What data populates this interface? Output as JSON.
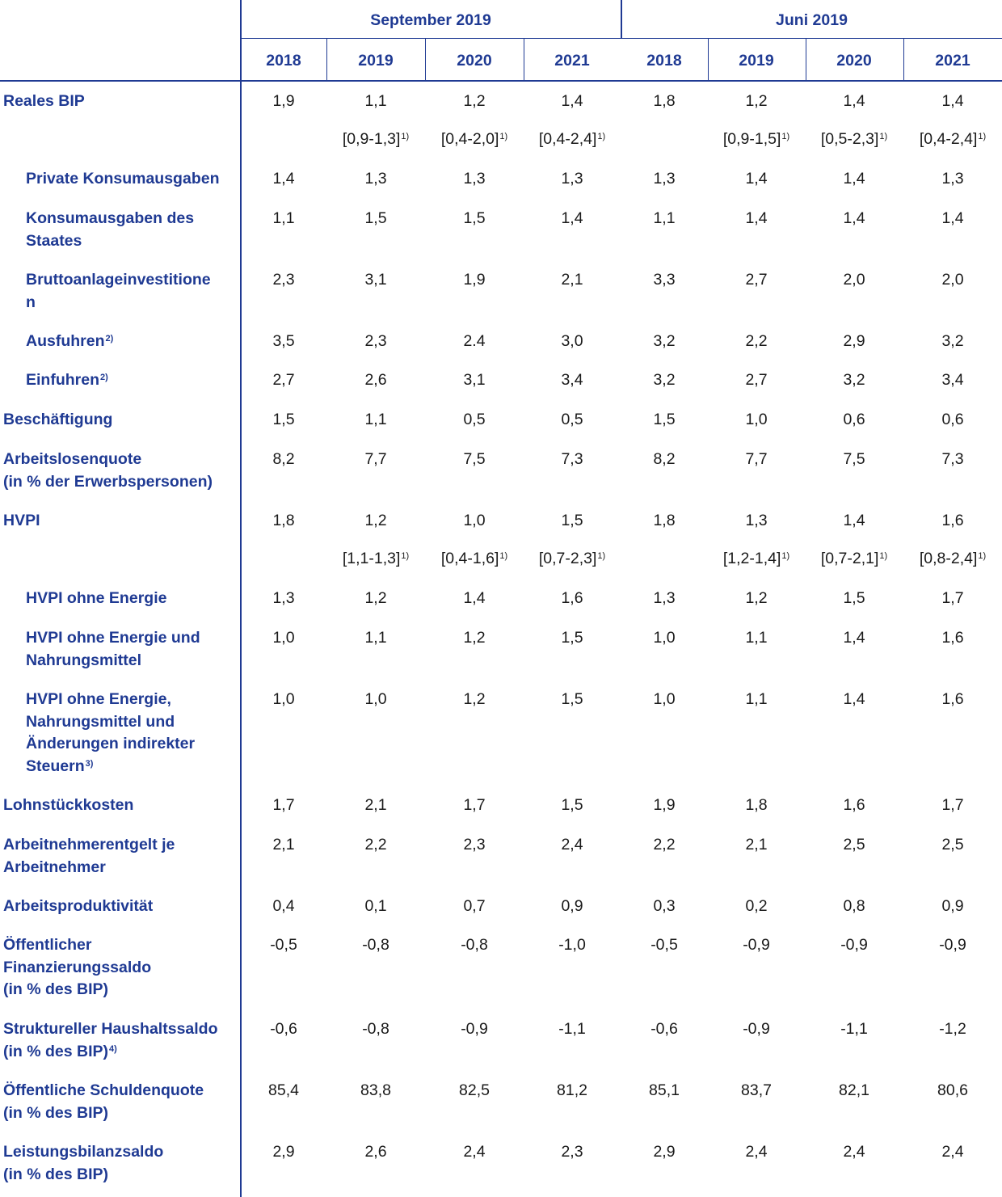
{
  "header": {
    "group1": "September 2019",
    "group2": "Juni 2019",
    "years": [
      "2018",
      "2019",
      "2020",
      "2021",
      "2018",
      "2019",
      "2020",
      "2021"
    ]
  },
  "rows": [
    {
      "label": [
        "Reales BIP"
      ],
      "indent": false,
      "values": [
        "1,9",
        "1,1",
        "1,2",
        "1,4",
        "1,8",
        "1,2",
        "1,4",
        "1,4"
      ]
    },
    {
      "range": true,
      "values": [
        "",
        "[0,9-1,3]",
        "[0,4-2,0]",
        "[0,4-2,4]",
        "",
        "[0,9-1,5]",
        "[0,5-2,3]",
        "[0,4-2,4]"
      ],
      "sup": "1)"
    },
    {
      "label": [
        "Private Konsumausgaben"
      ],
      "indent": true,
      "values": [
        "1,4",
        "1,3",
        "1,3",
        "1,3",
        "1,3",
        "1,4",
        "1,4",
        "1,3"
      ]
    },
    {
      "label": [
        "Konsumausgaben des",
        "Staates"
      ],
      "indent": true,
      "values": [
        "1,1",
        "1,5",
        "1,5",
        "1,4",
        "1,1",
        "1,4",
        "1,4",
        "1,4"
      ]
    },
    {
      "label": [
        "Bruttoanlageinvestitione",
        "n"
      ],
      "indent": true,
      "values": [
        "2,3",
        "3,1",
        "1,9",
        "2,1",
        "3,3",
        "2,7",
        "2,0",
        "2,0"
      ]
    },
    {
      "label": [
        "Ausfuhren"
      ],
      "labelSup": "2)",
      "indent": true,
      "values": [
        "3,5",
        "2,3",
        "2.4",
        "3,0",
        "3,2",
        "2,2",
        "2,9",
        "3,2"
      ]
    },
    {
      "label": [
        "Einfuhren"
      ],
      "labelSup": "2)",
      "indent": true,
      "values": [
        "2,7",
        "2,6",
        "3,1",
        "3,4",
        "3,2",
        "2,7",
        "3,2",
        "3,4"
      ]
    },
    {
      "label": [
        "Beschäftigung"
      ],
      "indent": false,
      "values": [
        "1,5",
        "1,1",
        "0,5",
        "0,5",
        "1,5",
        "1,0",
        "0,6",
        "0,6"
      ]
    },
    {
      "label": [
        "Arbeitslosenquote",
        "(in % der Erwerbspersonen)"
      ],
      "indent": false,
      "values": [
        "8,2",
        "7,7",
        "7,5",
        "7,3",
        "8,2",
        "7,7",
        "7,5",
        "7,3"
      ]
    },
    {
      "label": [
        "HVPI"
      ],
      "indent": false,
      "values": [
        "1,8",
        "1,2",
        "1,0",
        "1,5",
        "1,8",
        "1,3",
        "1,4",
        "1,6"
      ]
    },
    {
      "range": true,
      "values": [
        "",
        "[1,1-1,3]",
        "[0,4-1,6]",
        "[0,7-2,3]",
        "",
        "[1,2-1,4]",
        "[0,7-2,1]",
        "[0,8-2,4]"
      ],
      "sup": "1)"
    },
    {
      "label": [
        "HVPI ohne Energie"
      ],
      "indent": true,
      "values": [
        "1,3",
        "1,2",
        "1,4",
        "1,6",
        "1,3",
        "1,2",
        "1,5",
        "1,7"
      ]
    },
    {
      "label": [
        "HVPI ohne Energie und",
        "Nahrungsmittel"
      ],
      "indent": true,
      "values": [
        "1,0",
        "1,1",
        "1,2",
        "1,5",
        "1,0",
        "1,1",
        "1,4",
        "1,6"
      ]
    },
    {
      "label": [
        "HVPI ohne Energie,",
        "Nahrungsmittel und",
        "Änderungen indirekter",
        "Steuern"
      ],
      "labelSup": "3)",
      "indent": true,
      "values": [
        "1,0",
        "1,0",
        "1,2",
        "1,5",
        "1,0",
        "1,1",
        "1,4",
        "1,6"
      ]
    },
    {
      "label": [
        "Lohnstückkosten"
      ],
      "indent": false,
      "values": [
        "1,7",
        "2,1",
        "1,7",
        "1,5",
        "1,9",
        "1,8",
        "1,6",
        "1,7"
      ]
    },
    {
      "label": [
        "Arbeitnehmerentgelt je",
        "Arbeitnehmer"
      ],
      "indent": false,
      "values": [
        "2,1",
        "2,2",
        "2,3",
        "2,4",
        "2,2",
        "2,1",
        "2,5",
        "2,5"
      ]
    },
    {
      "label": [
        "Arbeitsproduktivität"
      ],
      "indent": false,
      "values": [
        "0,4",
        "0,1",
        "0,7",
        "0,9",
        "0,3",
        "0,2",
        "0,8",
        "0,9"
      ]
    },
    {
      "label": [
        "Öffentlicher",
        "Finanzierungssaldo",
        "(in % des BIP)"
      ],
      "indent": false,
      "values": [
        "-0,5",
        "-0,8",
        "-0,8",
        "-1,0",
        "-0,5",
        "-0,9",
        "-0,9",
        "-0,9"
      ]
    },
    {
      "label": [
        "Struktureller Haushaltssaldo",
        "(in % des BIP)"
      ],
      "labelSup": "4)",
      "indent": false,
      "values": [
        "-0,6",
        "-0,8",
        "-0,9",
        "-1,1",
        "-0,6",
        "-0,9",
        "-1,1",
        "-1,2"
      ]
    },
    {
      "label": [
        "Öffentliche Schuldenquote",
        "(in % des BIP)"
      ],
      "indent": false,
      "values": [
        "85,4",
        "83,8",
        "82,5",
        "81,2",
        "85,1",
        "83,7",
        "82,1",
        "80,6"
      ]
    },
    {
      "label": [
        "Leistungsbilanzsaldo",
        "(in % des BIP)"
      ],
      "indent": false,
      "values": [
        "2,9",
        "2,6",
        "2,4",
        "2,3",
        "2,9",
        "2,4",
        "2,4",
        "2,4"
      ]
    }
  ]
}
